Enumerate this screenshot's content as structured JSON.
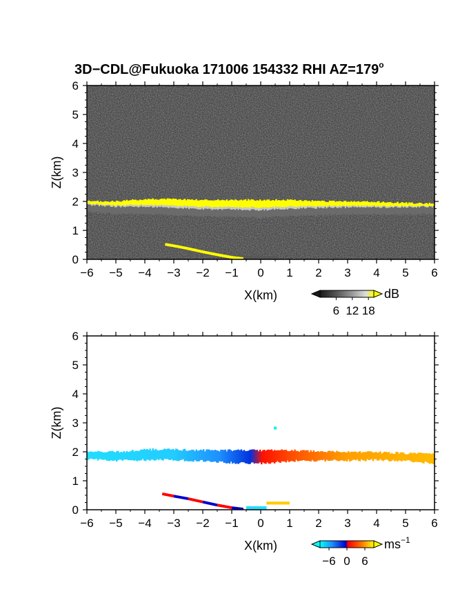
{
  "title": {
    "main": "3D−CDL@Fukuoka 171006 154332 RHI AZ=179",
    "degree": "o"
  },
  "chart_data": [
    {
      "type": "heatmap",
      "panel": "intensity",
      "xlabel": "X(km)",
      "ylabel": "Z(km)",
      "xlim": [
        -6,
        6
      ],
      "ylim": [
        0,
        6
      ],
      "x_ticks": [
        "−6",
        "−5",
        "−4",
        "−3",
        "−2",
        "−1",
        "0",
        "1",
        "2",
        "3",
        "4",
        "5",
        "6"
      ],
      "y_ticks": [
        "0",
        "1",
        "2",
        "3",
        "4",
        "5",
        "6"
      ],
      "colorbar": {
        "unit": "dB",
        "ticks": [
          "6",
          "12",
          "18"
        ],
        "tick_values": [
          6,
          12,
          18
        ],
        "range": [
          0,
          20
        ],
        "colors": [
          "#1a1a1a",
          "#555555",
          "#999999",
          "#dddddd",
          "#ffff00"
        ]
      },
      "layer": {
        "description": "cloud layer top ~2.0 km",
        "x": [
          -6,
          -5,
          -4,
          -3,
          -2,
          -1,
          0,
          1,
          2,
          3,
          4,
          5,
          6
        ],
        "top": [
          2.0,
          2.0,
          2.08,
          2.08,
          2.05,
          2.05,
          2.05,
          2.05,
          2.0,
          2.0,
          1.98,
          1.95,
          1.92
        ],
        "bottom": [
          1.88,
          1.82,
          1.82,
          1.78,
          1.73,
          1.72,
          1.7,
          1.75,
          1.78,
          1.8,
          1.8,
          1.8,
          1.82
        ]
      },
      "ground_clutter": {
        "x": [
          -3.3,
          -2.9,
          -2.5,
          -2.0,
          -1.5,
          -1.0,
          -0.6
        ],
        "z": [
          0.52,
          0.45,
          0.37,
          0.26,
          0.16,
          0.07,
          0.02
        ]
      }
    },
    {
      "type": "heatmap",
      "panel": "velocity",
      "xlabel": "X(km)",
      "ylabel": "Z(km)",
      "xlim": [
        -6,
        6
      ],
      "ylim": [
        0,
        6
      ],
      "x_ticks": [
        "−6",
        "−5",
        "−4",
        "−3",
        "−2",
        "−1",
        "0",
        "1",
        "2",
        "3",
        "4",
        "5",
        "6"
      ],
      "y_ticks": [
        "0",
        "1",
        "2",
        "3",
        "4",
        "5",
        "6"
      ],
      "colorbar": {
        "unit": "ms",
        "unit_exp": "−1",
        "ticks": [
          "−6",
          "0",
          "6"
        ],
        "tick_values": [
          -6,
          0,
          6
        ],
        "range": [
          -9,
          9
        ],
        "colors": [
          "#00ffff",
          "#1e90ff",
          "#0000cc",
          "#ff0000",
          "#ff7700",
          "#ffff00"
        ]
      },
      "layer": {
        "x": [
          -6,
          -5,
          -4,
          -3,
          -2,
          -1,
          0,
          1,
          2,
          3,
          4,
          5,
          6
        ],
        "top": [
          2.0,
          2.0,
          2.08,
          2.08,
          2.05,
          2.05,
          2.05,
          2.05,
          2.0,
          2.0,
          1.98,
          1.95,
          1.92
        ],
        "bottom": [
          1.75,
          1.7,
          1.72,
          1.72,
          1.68,
          1.62,
          1.6,
          1.68,
          1.7,
          1.7,
          1.72,
          1.68,
          1.6
        ],
        "velocity": [
          -7.5,
          -7.5,
          -7.2,
          -6.5,
          -5.2,
          -3.5,
          0.5,
          3.5,
          5.0,
          5.8,
          6.5,
          7.0,
          7.5
        ]
      },
      "ground_clutter": {
        "x": [
          -3.4,
          -3.0,
          -2.5,
          -2.0,
          -1.5,
          -1.0,
          -0.6
        ],
        "z": [
          0.55,
          0.47,
          0.38,
          0.27,
          0.16,
          0.07,
          0.02
        ]
      },
      "isolated_echo": {
        "x": 0.5,
        "z": 2.82,
        "velocity": -7.5
      }
    }
  ]
}
